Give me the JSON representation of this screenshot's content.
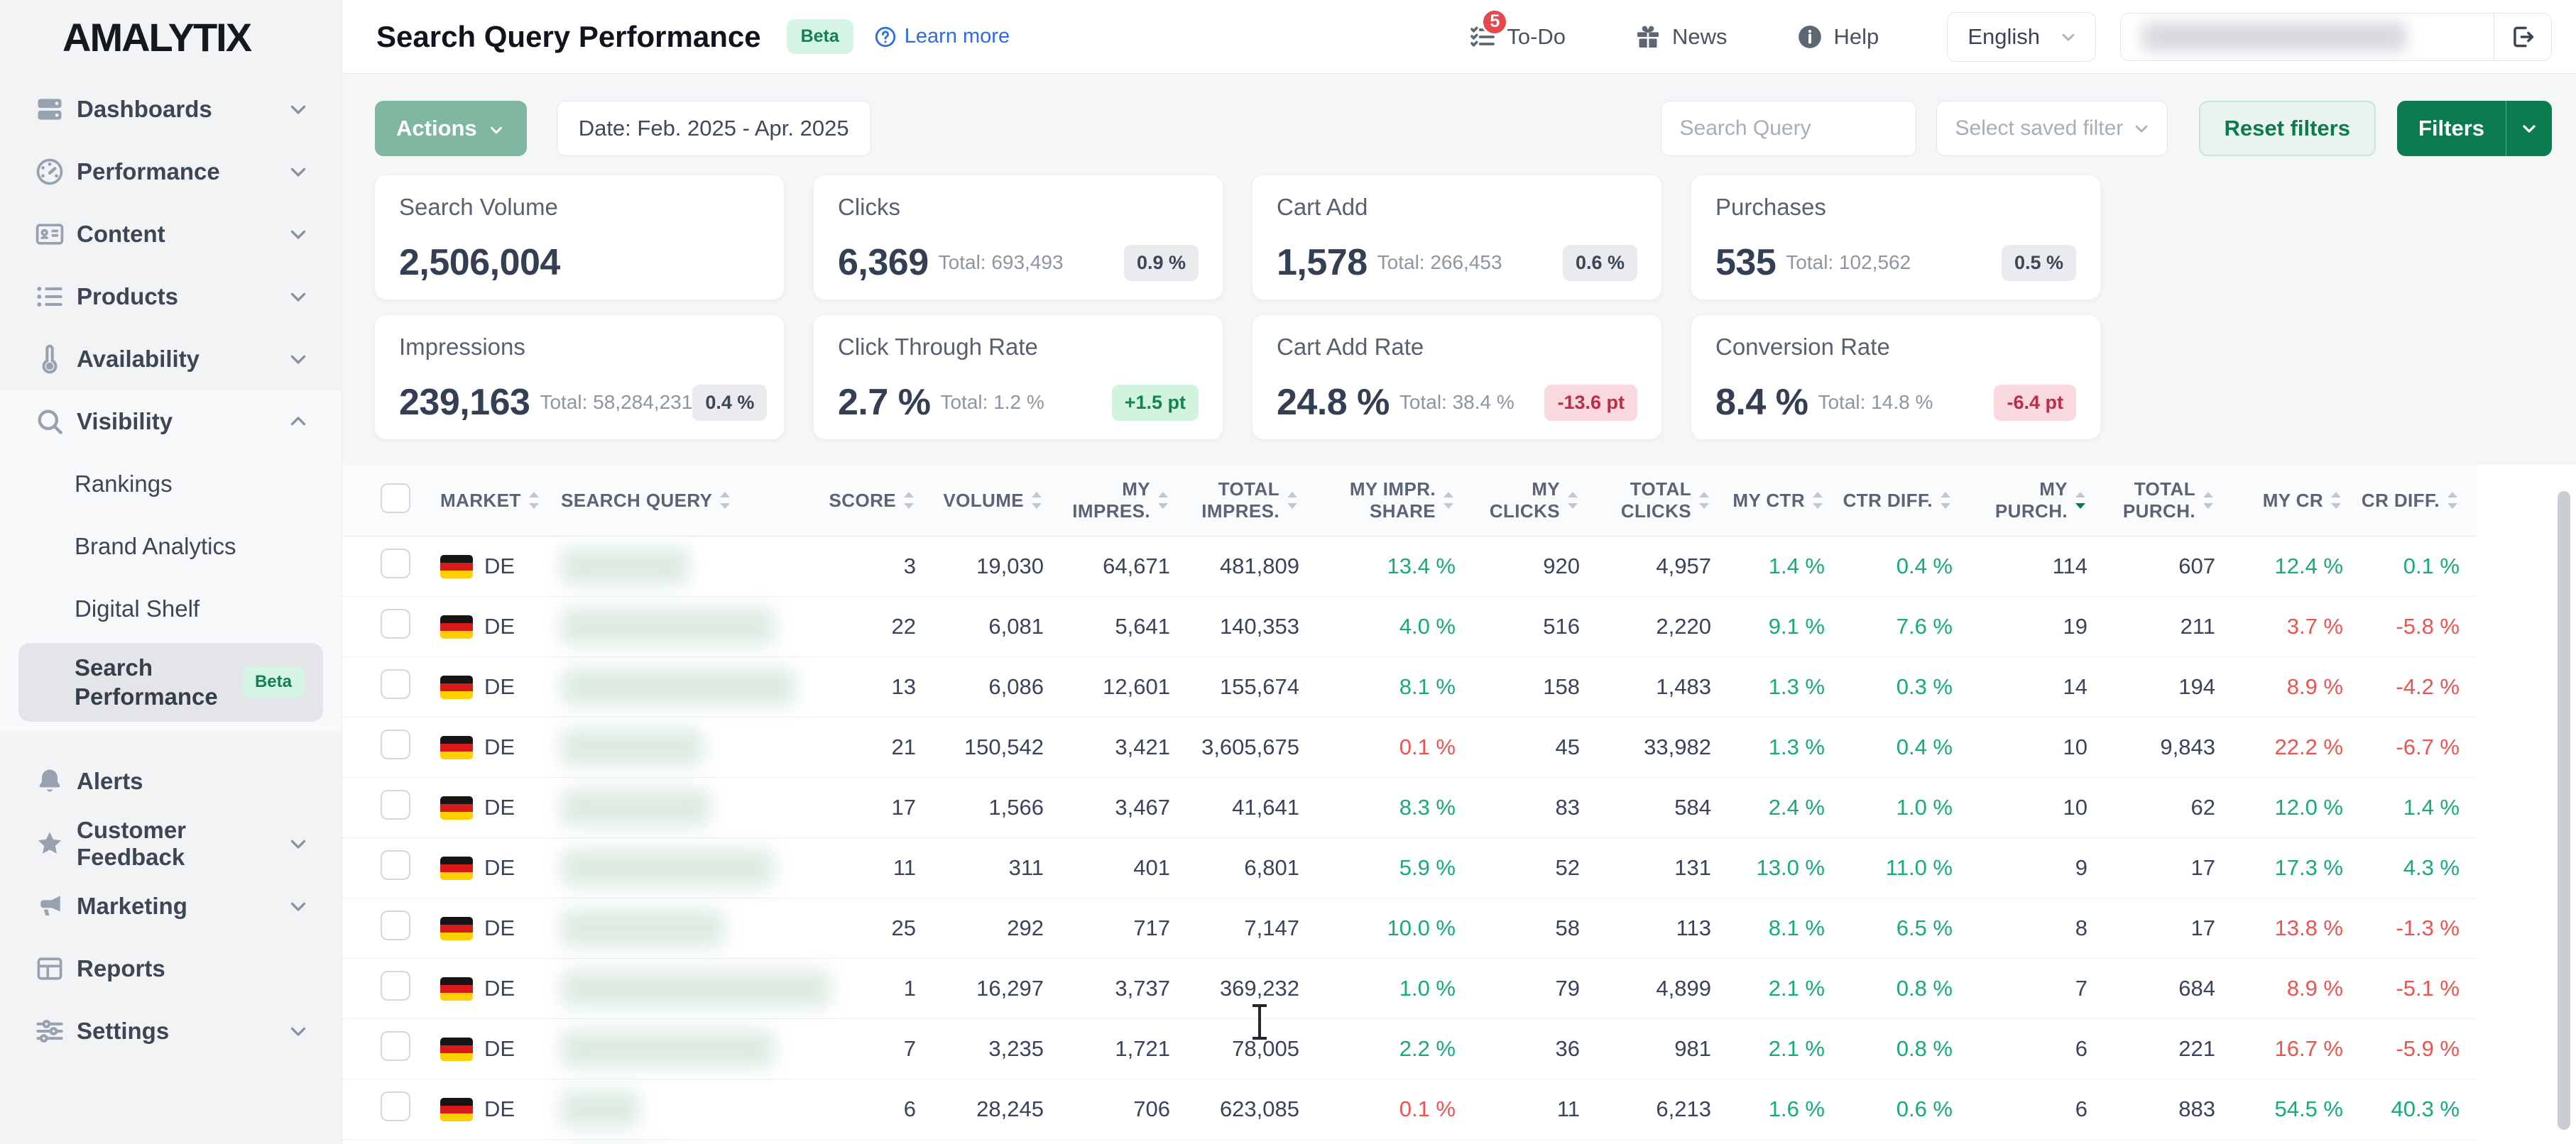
{
  "brand": {
    "logo": "AMALYTIX"
  },
  "header": {
    "title": "Search Query Performance",
    "beta_badge": "Beta",
    "learn_more": "Learn more",
    "todo_label": "To-Do",
    "todo_badge": "5",
    "news_label": "News",
    "help_label": "Help",
    "language": "English"
  },
  "colors": {
    "accent_green": "#0c7b4f",
    "positive": "#16ab7c",
    "negative": "#ef5350"
  },
  "sidebar": {
    "top_items": [
      {
        "label": "Dashboards",
        "icon": "server",
        "chev": "down"
      },
      {
        "label": "Performance",
        "icon": "gauge",
        "chev": "down"
      },
      {
        "label": "Content",
        "icon": "id-card",
        "chev": "down"
      },
      {
        "label": "Products",
        "icon": "list",
        "chev": "down"
      },
      {
        "label": "Availability",
        "icon": "thermometer",
        "chev": "down"
      }
    ],
    "visibility_group": {
      "parent": {
        "label": "Visibility",
        "icon": "search",
        "chev": "up"
      },
      "children": [
        {
          "label": "Rankings"
        },
        {
          "label": "Brand Analytics"
        },
        {
          "label": "Digital Shelf"
        }
      ],
      "active": {
        "label": "Search Performance",
        "badge": "Beta"
      }
    },
    "bottom_items": [
      {
        "label": "Alerts",
        "icon": "bell",
        "chev": null
      },
      {
        "label": "Customer Feedback",
        "icon": "star",
        "chev": "down"
      },
      {
        "label": "Marketing",
        "icon": "megaphone",
        "chev": "down"
      },
      {
        "label": "Reports",
        "icon": "grid",
        "chev": null
      },
      {
        "label": "Settings",
        "icon": "sliders",
        "chev": "down"
      }
    ]
  },
  "toolbar": {
    "actions_label": "Actions",
    "date_label": "Date: Feb. 2025 - Apr. 2025",
    "search_placeholder": "Search Query",
    "saved_filter_placeholder": "Select saved filter",
    "reset_label": "Reset filters",
    "filters_label": "Filters"
  },
  "kpis": [
    {
      "label": "Search Volume",
      "value": "2,506,004",
      "total": "",
      "badge": "",
      "badge_type": ""
    },
    {
      "label": "Clicks",
      "value": "6,369",
      "total": "Total: 693,493",
      "badge": "0.9 %",
      "badge_type": "neutral"
    },
    {
      "label": "Cart Add",
      "value": "1,578",
      "total": "Total: 266,453",
      "badge": "0.6 %",
      "badge_type": "neutral"
    },
    {
      "label": "Purchases",
      "value": "535",
      "total": "Total: 102,562",
      "badge": "0.5 %",
      "badge_type": "neutral"
    },
    {
      "label": "Impressions",
      "value": "239,163",
      "total": "Total: 58,284,231",
      "badge": "0.4 %",
      "badge_type": "neutral"
    },
    {
      "label": "Click Through Rate",
      "value": "2.7 %",
      "total": "Total: 1.2 %",
      "badge": "+1.5 pt",
      "badge_type": "positive"
    },
    {
      "label": "Cart Add Rate",
      "value": "24.8 %",
      "total": "Total: 38.4 %",
      "badge": "-13.6 pt",
      "badge_type": "negative"
    },
    {
      "label": "Conversion Rate",
      "value": "8.4 %",
      "total": "Total: 14.8 %",
      "badge": "-6.4 pt",
      "badge_type": "negative"
    }
  ],
  "table": {
    "columns": [
      {
        "label": "MARKET",
        "align": "left",
        "sort": "both"
      },
      {
        "label": "SEARCH QUERY",
        "align": "left",
        "sort": "both"
      },
      {
        "label": "SCORE",
        "align": "right",
        "sort": "both"
      },
      {
        "label": "VOLUME",
        "align": "right",
        "sort": "both"
      },
      {
        "label": "MY IMPRES.",
        "align": "right",
        "sort": "both"
      },
      {
        "label": "TOTAL IMPRES.",
        "align": "right",
        "sort": "both"
      },
      {
        "label": "MY IMPR. SHARE",
        "align": "right",
        "sort": "both"
      },
      {
        "label": "MY CLICKS",
        "align": "right",
        "sort": "both"
      },
      {
        "label": "TOTAL CLICKS",
        "align": "right",
        "sort": "both"
      },
      {
        "label": "MY CTR",
        "align": "right",
        "sort": "both"
      },
      {
        "label": "CTR DIFF.",
        "align": "right",
        "sort": "both"
      },
      {
        "label": "MY PURCH.",
        "align": "right",
        "sort": "desc"
      },
      {
        "label": "TOTAL PURCH.",
        "align": "right",
        "sort": "both"
      },
      {
        "label": "MY CR",
        "align": "right",
        "sort": "both"
      },
      {
        "label": "CR DIFF.",
        "align": "right",
        "sort": "both"
      }
    ],
    "rows": [
      {
        "market": "DE",
        "blur": 180,
        "cells": [
          "3",
          "19,030",
          "64,671",
          "481,809",
          [
            "13.4 %",
            "pos"
          ],
          "920",
          "4,957",
          [
            "1.4 %",
            "pos"
          ],
          [
            "0.4 %",
            "pos"
          ],
          "114",
          "607",
          [
            "12.4 %",
            "pos"
          ],
          [
            "0.1 %",
            "pos"
          ]
        ]
      },
      {
        "market": "DE",
        "blur": 300,
        "cells": [
          "22",
          "6,081",
          "5,641",
          "140,353",
          [
            "4.0 %",
            "pos"
          ],
          "516",
          "2,220",
          [
            "9.1 %",
            "pos"
          ],
          [
            "7.6 %",
            "pos"
          ],
          "19",
          "211",
          [
            "3.7 %",
            "neg"
          ],
          [
            "-5.8 %",
            "neg"
          ]
        ]
      },
      {
        "market": "DE",
        "blur": 330,
        "cells": [
          "13",
          "6,086",
          "12,601",
          "155,674",
          [
            "8.1 %",
            "pos"
          ],
          "158",
          "1,483",
          [
            "1.3 %",
            "pos"
          ],
          [
            "0.3 %",
            "pos"
          ],
          "14",
          "194",
          [
            "8.9 %",
            "neg"
          ],
          [
            "-4.2 %",
            "neg"
          ]
        ]
      },
      {
        "market": "DE",
        "blur": 200,
        "cells": [
          "21",
          "150,542",
          "3,421",
          "3,605,675",
          [
            "0.1 %",
            "neg"
          ],
          "45",
          "33,982",
          [
            "1.3 %",
            "pos"
          ],
          [
            "0.4 %",
            "pos"
          ],
          "10",
          "9,843",
          [
            "22.2 %",
            "neg"
          ],
          [
            "-6.7 %",
            "neg"
          ]
        ]
      },
      {
        "market": "DE",
        "blur": 210,
        "cells": [
          "17",
          "1,566",
          "3,467",
          "41,641",
          [
            "8.3 %",
            "pos"
          ],
          "83",
          "584",
          [
            "2.4 %",
            "pos"
          ],
          [
            "1.0 %",
            "pos"
          ],
          "10",
          "62",
          [
            "12.0 %",
            "pos"
          ],
          [
            "1.4 %",
            "pos"
          ]
        ]
      },
      {
        "market": "DE",
        "blur": 300,
        "cells": [
          "11",
          "311",
          "401",
          "6,801",
          [
            "5.9 %",
            "pos"
          ],
          "52",
          "131",
          [
            "13.0 %",
            "pos"
          ],
          [
            "11.0 %",
            "pos"
          ],
          "9",
          "17",
          [
            "17.3 %",
            "pos"
          ],
          [
            "4.3 %",
            "pos"
          ]
        ]
      },
      {
        "market": "DE",
        "blur": 230,
        "cells": [
          "25",
          "292",
          "717",
          "7,147",
          [
            "10.0 %",
            "pos"
          ],
          "58",
          "113",
          [
            "8.1 %",
            "pos"
          ],
          [
            "6.5 %",
            "pos"
          ],
          "8",
          "17",
          [
            "13.8 %",
            "neg"
          ],
          [
            "-1.3 %",
            "neg"
          ]
        ]
      },
      {
        "market": "DE",
        "blur": 380,
        "cells": [
          "1",
          "16,297",
          "3,737",
          "369,232",
          [
            "1.0 %",
            "pos"
          ],
          "79",
          "4,899",
          [
            "2.1 %",
            "pos"
          ],
          [
            "0.8 %",
            "pos"
          ],
          "7",
          "684",
          [
            "8.9 %",
            "neg"
          ],
          [
            "-5.1 %",
            "neg"
          ]
        ]
      },
      {
        "market": "DE",
        "blur": 300,
        "cells": [
          "7",
          "3,235",
          "1,721",
          "78,005",
          [
            "2.2 %",
            "pos"
          ],
          "36",
          "981",
          [
            "2.1 %",
            "pos"
          ],
          [
            "0.8 %",
            "pos"
          ],
          "6",
          "221",
          [
            "16.7 %",
            "neg"
          ],
          [
            "-5.9 %",
            "neg"
          ]
        ]
      },
      {
        "market": "DE",
        "blur": 110,
        "cells": [
          "6",
          "28,245",
          "706",
          "623,085",
          [
            "0.1 %",
            "neg"
          ],
          "11",
          "6,213",
          [
            "1.6 %",
            "pos"
          ],
          [
            "0.6 %",
            "pos"
          ],
          "6",
          "883",
          [
            "54.5 %",
            "pos"
          ],
          [
            "40.3 %",
            "pos"
          ]
        ]
      }
    ],
    "partial_row": {
      "blur": 150
    }
  }
}
